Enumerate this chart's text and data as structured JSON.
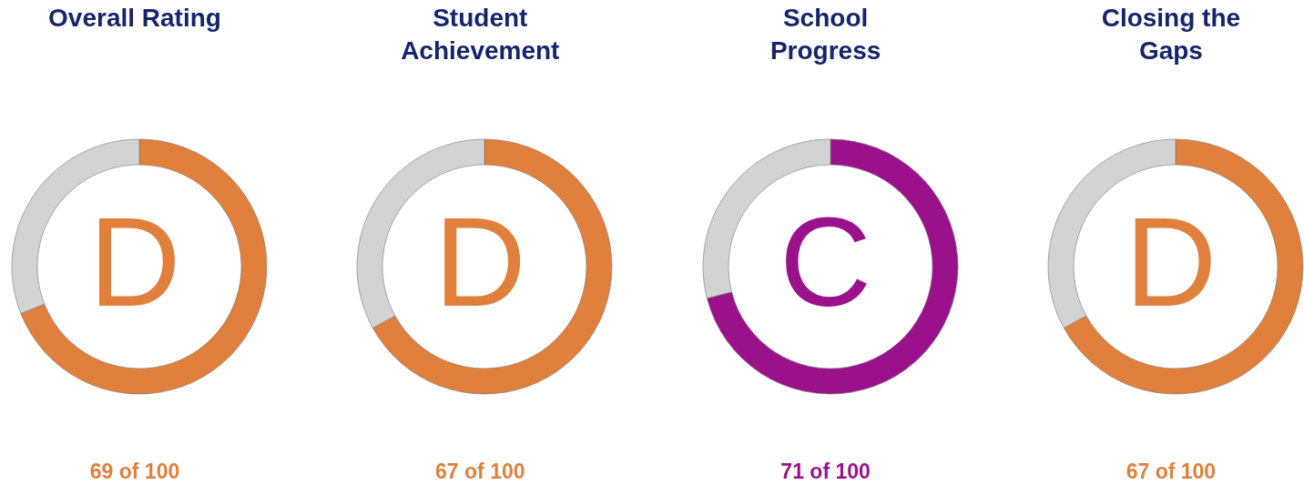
{
  "chart_data": [
    {
      "type": "donut",
      "title": "Overall Rating",
      "categories": [
        null,
        null
      ],
      "values": [
        69,
        31
      ],
      "colors": [
        "#e0803c",
        "#d3d3d3"
      ],
      "annotations": [
        "D",
        "69 of 100"
      ]
    },
    {
      "type": "donut",
      "title": "Student Achievement",
      "categories": [
        null,
        null
      ],
      "values": [
        67,
        33
      ],
      "colors": [
        "#e0803c",
        "#d3d3d3"
      ],
      "annotations": [
        "D",
        "67 of 100"
      ]
    },
    {
      "type": "donut",
      "title": "School Progress",
      "categories": [
        null,
        null
      ],
      "values": [
        71,
        29
      ],
      "colors": [
        "#9b118b",
        "#d3d3d3"
      ],
      "annotations": [
        "C",
        "71 of 100"
      ]
    },
    {
      "type": "donut",
      "title": "Closing the Gaps",
      "categories": [
        null,
        null
      ],
      "values": [
        67,
        33
      ],
      "colors": [
        "#e0803c",
        "#d3d3d3"
      ],
      "annotations": [
        "D",
        "67 of 100"
      ]
    }
  ]
}
